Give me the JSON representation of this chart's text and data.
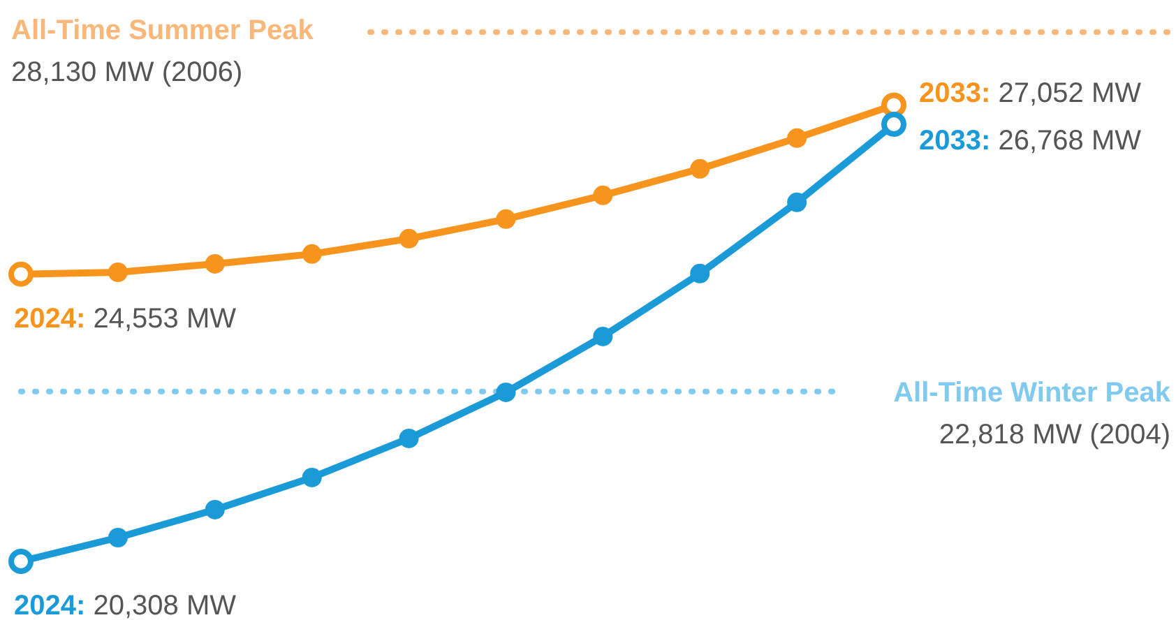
{
  "chart_data": {
    "type": "line",
    "categories": [
      null,
      null,
      null,
      null,
      null,
      null,
      null,
      null,
      null,
      null
    ],
    "series": [
      {
        "name": null,
        "color": "#f7941d",
        "values": [
          24553,
          24580,
          24705,
          24850,
          25077,
          25366,
          25717,
          26109,
          26563,
          27052
        ],
        "value_labels": [
          "2024: 24,553 MW",
          null,
          null,
          null,
          null,
          null,
          null,
          null,
          null,
          "2033: 27,052 MW"
        ]
      },
      {
        "name": null,
        "color": "#1a9ad6",
        "values": [
          20308,
          20659,
          21072,
          21547,
          22125,
          22806,
          23632,
          24561,
          25614,
          26768
        ],
        "value_labels": [
          "2024: 20,308 MW",
          null,
          null,
          null,
          null,
          null,
          null,
          null,
          null,
          "2033: 26,768 MW"
        ]
      }
    ],
    "ref_lines": [
      {
        "axis": "y",
        "value": 28130,
        "label": "All-Time Summer Peak\n28,130 MW (2006)",
        "color": "#f9b77a",
        "line_style": "dotted"
      },
      {
        "axis": "y",
        "value": 22818,
        "label": "All-Time Winter Peak\n22,818 MW (2004)",
        "color": "#7fcaee",
        "line_style": "dotted"
      }
    ],
    "marker": "circle",
    "line_style": "solid"
  }
}
